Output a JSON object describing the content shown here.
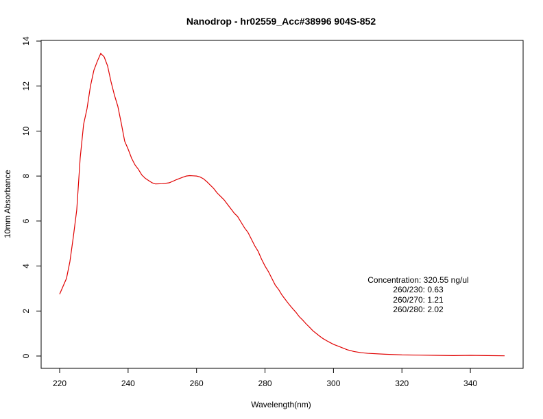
{
  "chart_data": {
    "type": "line",
    "title": "Nanodrop - hr02559_Acc#38996 904S-852",
    "xlabel": "Wavelength(nm)",
    "ylabel": "10mm Absorbance",
    "xlim": [
      220,
      350
    ],
    "ylim": [
      0,
      14
    ],
    "x_ticks": [
      220,
      240,
      260,
      280,
      300,
      320,
      340
    ],
    "y_ticks": [
      0,
      2,
      4,
      6,
      8,
      10,
      12,
      14
    ],
    "grid": false,
    "line_color": "#e00000",
    "series": [
      {
        "x": [
          220,
          222,
          223,
          224,
          225,
          226,
          227,
          228,
          229,
          230,
          231,
          232,
          233,
          234,
          235,
          236,
          237,
          238,
          239,
          240,
          241,
          242,
          243,
          244,
          245,
          246,
          247,
          248,
          250,
          252,
          254,
          256,
          257,
          258,
          259,
          260,
          261,
          262,
          263,
          264,
          265,
          266,
          267,
          268,
          269,
          270,
          271,
          272,
          273,
          274,
          275,
          276,
          277,
          278,
          279,
          280,
          281,
          282,
          283,
          284,
          285,
          286,
          287,
          288,
          289,
          290,
          291,
          292,
          293,
          294,
          295,
          296,
          297,
          298,
          299,
          300,
          302,
          304,
          306,
          308,
          310,
          315,
          320,
          325,
          330,
          335,
          340,
          345,
          350
        ],
        "y": [
          2.75,
          3.45,
          4.2,
          5.3,
          6.5,
          8.8,
          10.3,
          11.0,
          12.0,
          12.7,
          13.1,
          13.45,
          13.3,
          12.9,
          12.2,
          11.6,
          11.1,
          10.35,
          9.55,
          9.2,
          8.8,
          8.5,
          8.3,
          8.05,
          7.9,
          7.8,
          7.7,
          7.65,
          7.66,
          7.7,
          7.83,
          7.95,
          8.0,
          8.02,
          8.01,
          8.0,
          7.96,
          7.88,
          7.75,
          7.6,
          7.45,
          7.25,
          7.1,
          6.95,
          6.75,
          6.55,
          6.35,
          6.2,
          5.95,
          5.7,
          5.5,
          5.2,
          4.9,
          4.65,
          4.3,
          4.0,
          3.75,
          3.45,
          3.15,
          2.95,
          2.7,
          2.5,
          2.3,
          2.12,
          1.95,
          1.75,
          1.6,
          1.43,
          1.28,
          1.12,
          1.0,
          0.88,
          0.77,
          0.68,
          0.6,
          0.52,
          0.4,
          0.28,
          0.2,
          0.15,
          0.12,
          0.08,
          0.05,
          0.04,
          0.03,
          0.02,
          0.03,
          0.02,
          0.01
        ]
      }
    ],
    "annotation": [
      "Concentration: 320.55 ng/ul",
      "260/230: 0.63",
      "260/270: 1.21",
      "260/280: 2.02"
    ]
  }
}
